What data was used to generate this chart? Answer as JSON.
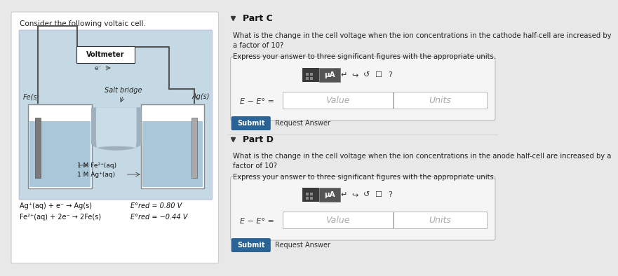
{
  "bg_color": "#e8e8e8",
  "left_outer_bg": "#ccdde8",
  "left_inner_bg": "#c5d9e5",
  "title_text": "Consider the following voltaic cell.",
  "voltmeter_label": "Voltmeter",
  "electron_label": "e⁻",
  "salt_bridge_label": "Salt bridge",
  "fe_label": "Fe(s)",
  "ag_label": "Ag(s)",
  "solution1_label": "1 M Fe²⁺(aq)",
  "solution2_label": "1 M Ag⁺(aq)",
  "reaction1_lhs": "Ag⁺(aq) + e⁻ → Ag(s)",
  "reaction1_rhs": "E°red = 0.80 V",
  "reaction2_lhs": "Fe²⁺(aq) + 2e⁻ → 2Fe(s)",
  "reaction2_rhs": "E°red = −0.44 V",
  "part_c_header": "Part C",
  "part_c_q": "What is the change in the cell voltage when the ion concentrations in the cathode half-cell are increased by\na factor of 10?",
  "part_c_instruct": "Express your answer to three significant figures with the appropriate units.",
  "part_d_header": "Part D",
  "part_d_q": "What is the change in the cell voltage when the ion concentrations in the anode half-cell are increased by a\nfactor of 10?",
  "part_d_instruct": "Express your answer to three significant figures with the appropriate units.",
  "e_label": "E − E° =",
  "value_placeholder": "Value",
  "units_placeholder": "Units",
  "submit_label": "Submit",
  "request_answer_label": "Request Answer",
  "submit_color": "#2a6496",
  "submit_text_color": "#ffffff",
  "water_color_left": "#9bbdd4",
  "water_color_right": "#9bbdd4",
  "electrode_color_fe": "#7a7a7a",
  "electrode_color_ag": "#aaaaaa",
  "beaker_outline": "#888888",
  "wire_color": "#555555",
  "salt_bridge_outer": "#a0b0bc",
  "salt_bridge_inner": "#c8dde8",
  "toolbar_bg": "#3a3a3a",
  "icon_bg": "#555555",
  "input_box_bg": "#f0f0f0",
  "input_border": "#bbbbbb",
  "value_box_bg": "#ffffff",
  "triangle_marker_color": "#333333"
}
